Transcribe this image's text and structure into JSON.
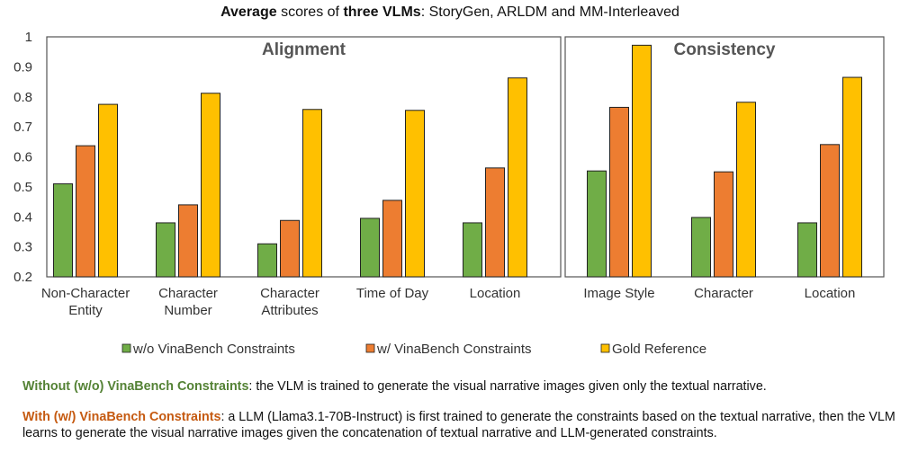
{
  "title": {
    "parts": [
      {
        "text": "Average",
        "bold": true
      },
      {
        "text": " scores of ",
        "bold": false
      },
      {
        "text": "three VLMs",
        "bold": true
      },
      {
        "text": ": StoryGen, ARLDM and MM-Interleaved",
        "bold": false
      }
    ]
  },
  "colors": {
    "wo": "#70ad47",
    "w": "#ed7d31",
    "gold": "#ffc000",
    "wo_text": "#548235",
    "w_text": "#c55a11"
  },
  "chart_data": {
    "type": "bar",
    "ylim": [
      0.2,
      1
    ],
    "yticks": [
      "1",
      "0.9",
      "0.8",
      "0.7",
      "0.6",
      "0.5",
      "0.4",
      "0.3",
      "0.2"
    ],
    "legend_position": "bottom",
    "series": [
      {
        "name": "w/o VinaBench Constraints",
        "key": "wo"
      },
      {
        "name": "w/ VinaBench Constraints",
        "key": "w"
      },
      {
        "name": "Gold Reference",
        "key": "gold"
      }
    ],
    "panels": [
      {
        "title": "Alignment",
        "categories": [
          {
            "label": [
              "Non-Character",
              "Entity"
            ],
            "values": [
              0.51,
              0.637,
              0.775
            ]
          },
          {
            "label": [
              "Character",
              "Number"
            ],
            "values": [
              0.38,
              0.44,
              0.812
            ]
          },
          {
            "label": [
              "Character",
              "Attributes"
            ],
            "values": [
              0.31,
              0.388,
              0.758
            ]
          },
          {
            "label": [
              "Time of Day"
            ],
            "values": [
              0.395,
              0.455,
              0.755
            ]
          },
          {
            "label": [
              "Location"
            ],
            "values": [
              0.38,
              0.563,
              0.863
            ]
          }
        ]
      },
      {
        "title": "Consistency",
        "categories": [
          {
            "label": [
              "Image Style"
            ],
            "values": [
              0.553,
              0.765,
              0.972
            ]
          },
          {
            "label": [
              "Character"
            ],
            "values": [
              0.398,
              0.55,
              0.782
            ]
          },
          {
            "label": [
              "Location"
            ],
            "values": [
              0.38,
              0.641,
              0.865
            ]
          }
        ]
      }
    ]
  },
  "notes": {
    "wo": {
      "lead": "Without (w/o) VinaBench Constraints",
      "text": ": the VLM is trained to generate the visual narrative images given only the textual narrative."
    },
    "w": {
      "lead": "With (w/) VinaBench Constraints",
      "text": ": a LLM (Llama3.1-70B-Instruct) is first trained to generate the constraints based on the textual narrative, then the VLM learns to generate the visual narrative images given the concatenation of textual narrative and LLM-generated constraints."
    }
  }
}
